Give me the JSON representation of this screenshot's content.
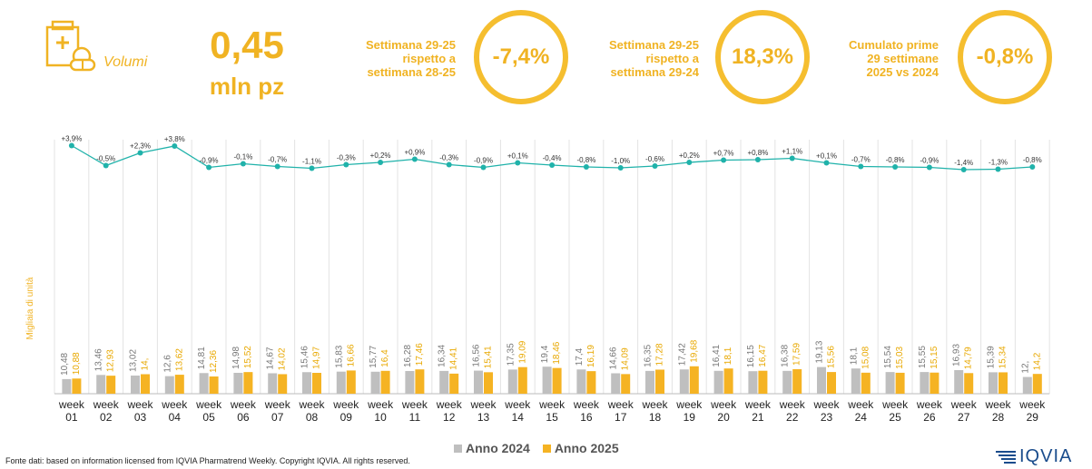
{
  "kpi": {
    "label": "Volumi",
    "value": "0,45",
    "unit": "mln pz"
  },
  "stats": [
    {
      "desc": "Settimana 29-25\nrispetto a\nsettimana 28-25",
      "value": "-7,4%"
    },
    {
      "desc": "Settimana 29-25\nrispetto a\nsettimana 29-24",
      "value": "18,3%"
    },
    {
      "desc": "Cumulato prime\n29 settimane\n2025 vs 2024",
      "value": "-0,8%"
    }
  ],
  "footer": "Fonte dati: based on information licensed from IQVIA Pharmatrend Weekly. Copyright IQVIA. All rights reserved.",
  "logo": "IQVIA",
  "colors": {
    "accent": "#F0B323",
    "series_2024": "#BFBFBF",
    "series_2025": "#F5B323",
    "line": "#20B2AA"
  },
  "chart_data": {
    "type": "bar",
    "ylabel": "Migliaia di unità",
    "categories": [
      "week\n01",
      "week\n02",
      "week\n03",
      "week\n04",
      "week\n05",
      "week\n06",
      "week\n07",
      "week\n08",
      "week\n09",
      "week\n10",
      "week\n11",
      "week\n12",
      "week\n13",
      "week\n14",
      "week\n15",
      "week\n16",
      "week\n17",
      "week\n18",
      "week\n19",
      "week\n20",
      "week\n21",
      "week\n22",
      "week\n23",
      "week\n24",
      "week\n25",
      "week\n26",
      "week\n27",
      "week\n28",
      "week\n29"
    ],
    "series": [
      {
        "name": "Anno 2024",
        "values": [
          10.48,
          13.46,
          13.02,
          12.6,
          14.81,
          14.98,
          14.67,
          15.46,
          15.83,
          15.77,
          16.28,
          16.34,
          16.56,
          17.35,
          19.4,
          17.4,
          14.66,
          16.35,
          17.42,
          16.41,
          16.15,
          16.38,
          19.13,
          18.1,
          15.54,
          15.55,
          16.93,
          15.39,
          12
        ],
        "labels": [
          "10,48",
          "13,46",
          "13,02",
          "12,6",
          "14,81",
          "14,98",
          "14,67",
          "15,46",
          "15,83",
          "15,77",
          "16,28",
          "16,34",
          "16,56",
          "17,35",
          "19,4",
          "17,4",
          "14,66",
          "16,35",
          "17,42",
          "16,41",
          "16,15",
          "16,38",
          "19,13",
          "18,1",
          "15,54",
          "15,55",
          "16,93",
          "15,39",
          "12,"
        ]
      },
      {
        "name": "Anno 2025",
        "values": [
          10.88,
          12.93,
          14,
          13.62,
          12.36,
          15.52,
          14.02,
          14.97,
          16.66,
          16.4,
          17.46,
          14.41,
          15.41,
          19.09,
          18.46,
          16.19,
          14.09,
          17.28,
          19.68,
          18.1,
          16.47,
          17.59,
          15.56,
          15.08,
          15.03,
          15.15,
          14.79,
          15.34,
          14.2
        ],
        "labels": [
          "10,88",
          "12,93",
          "14,",
          "13,62",
          "12,36",
          "15,52",
          "14,02",
          "14,97",
          "16,66",
          "16,4",
          "17,46",
          "14,41",
          "15,41",
          "19,09",
          "18,46",
          "16,19",
          "14,09",
          "17,28",
          "19,68",
          "18,1",
          "16,47",
          "17,59",
          "15,56",
          "15,08",
          "15,03",
          "15,15",
          "14,79",
          "15,34",
          "14,2"
        ]
      }
    ],
    "cumulative_change": {
      "values": [
        3.9,
        -0.5,
        2.3,
        3.8,
        -0.9,
        -0.1,
        -0.7,
        -1.1,
        -0.3,
        0.2,
        0.9,
        -0.3,
        -0.9,
        0.1,
        -0.4,
        -0.8,
        -1.0,
        -0.6,
        0.2,
        0.7,
        0.8,
        1.1,
        0.1,
        -0.7,
        -0.8,
        -0.9,
        -1.4,
        -1.3,
        -0.8
      ],
      "labels": [
        "+3,9%",
        "-0,5%",
        "+2,3%",
        "+3,8%",
        "-0,9%",
        "-0,1%",
        "-0,7%",
        "-1,1%",
        "-0,3%",
        "+0,2%",
        "+0,9%",
        "-0,3%",
        "-0,9%",
        "+0,1%",
        "-0,4%",
        "-0,8%",
        "-1,0%",
        "-0,6%",
        "+0,2%",
        "+0,7%",
        "+0,8%",
        "+1,1%",
        "+0,1%",
        "-0,7%",
        "-0,8%",
        "-0,9%",
        "-1,4%",
        "-1,3%",
        "-0,8%"
      ]
    },
    "ylim": [
      0,
      60
    ],
    "legend_position": "bottom"
  }
}
